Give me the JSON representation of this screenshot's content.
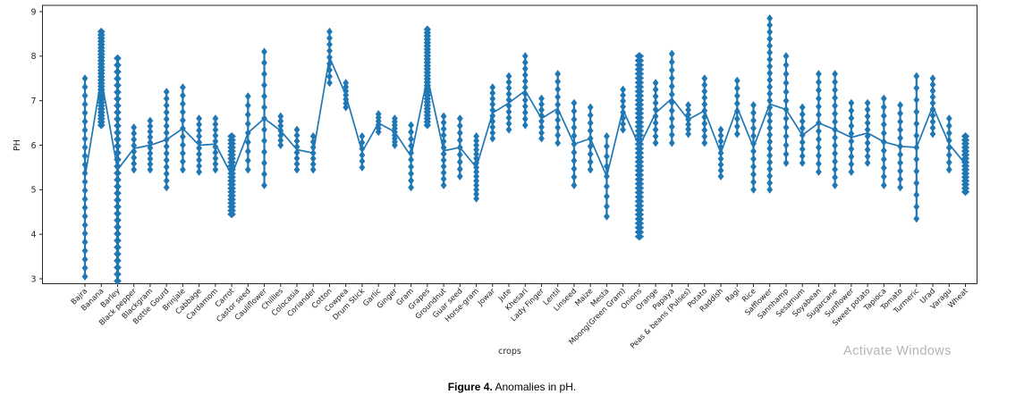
{
  "figure": {
    "caption_label": "Figure 4.",
    "caption_text": " Anomalies in pH."
  },
  "watermark": "Activate Windows",
  "chart_data": {
    "type": "scatter",
    "title": "",
    "xlabel": "crops",
    "ylabel": "PH",
    "ylim": [
      2.9,
      9.1
    ],
    "yticks": [
      3,
      4,
      5,
      6,
      7,
      8,
      9
    ],
    "grid": false,
    "legend": "none",
    "marker": "diamond",
    "color": "#1f77b4",
    "axis_color": "#262626",
    "note": "Each crop shows a dense vertical cluster of pH readings (anomaly scan); min/max give cluster extent, n = approx. point count, w = cluster thickness factor",
    "series": [
      {
        "label": "Bajra",
        "min": 3.05,
        "max": 7.5,
        "n": 24,
        "w": 1
      },
      {
        "label": "Banana",
        "min": 6.45,
        "max": 8.55,
        "n": 30,
        "w": 1.4
      },
      {
        "label": "Barley",
        "min": 2.95,
        "max": 7.95,
        "n": 34,
        "w": 1.4
      },
      {
        "label": "Black pepper",
        "min": 5.45,
        "max": 6.4,
        "n": 8,
        "w": 1
      },
      {
        "label": "Blackgram",
        "min": 5.45,
        "max": 6.55,
        "n": 10,
        "w": 1
      },
      {
        "label": "Bottle Gourd",
        "min": 5.05,
        "max": 7.2,
        "n": 15,
        "w": 1
      },
      {
        "label": "Brinjale",
        "min": 5.45,
        "max": 7.3,
        "n": 11,
        "w": 1
      },
      {
        "label": "Cabbage",
        "min": 5.4,
        "max": 6.6,
        "n": 10,
        "w": 1
      },
      {
        "label": "Cardamom",
        "min": 5.45,
        "max": 6.6,
        "n": 10,
        "w": 1
      },
      {
        "label": "Carrot",
        "min": 4.45,
        "max": 6.2,
        "n": 22,
        "w": 1.6
      },
      {
        "label": "Castor seed",
        "min": 5.45,
        "max": 7.1,
        "n": 9,
        "w": 1
      },
      {
        "label": "Cauliflower",
        "min": 5.1,
        "max": 8.1,
        "n": 13,
        "w": 1
      },
      {
        "label": "Chillies",
        "min": 6.0,
        "max": 6.65,
        "n": 7,
        "w": 1
      },
      {
        "label": "Colocasia",
        "min": 5.45,
        "max": 6.35,
        "n": 8,
        "w": 1
      },
      {
        "label": "Coriander",
        "min": 5.45,
        "max": 6.2,
        "n": 7,
        "w": 1
      },
      {
        "label": "Cotton",
        "min": 7.4,
        "max": 8.55,
        "n": 9,
        "w": 1
      },
      {
        "label": "Cowpea",
        "min": 6.85,
        "max": 7.4,
        "n": 7,
        "w": 1
      },
      {
        "label": "Drum Stick",
        "min": 5.5,
        "max": 6.2,
        "n": 6,
        "w": 1
      },
      {
        "label": "Garlic",
        "min": 6.3,
        "max": 6.7,
        "n": 6,
        "w": 1
      },
      {
        "label": "Ginger",
        "min": 6.0,
        "max": 6.6,
        "n": 9,
        "w": 1
      },
      {
        "label": "Gram",
        "min": 5.05,
        "max": 6.45,
        "n": 10,
        "w": 1
      },
      {
        "label": "Grapes",
        "min": 6.45,
        "max": 8.6,
        "n": 30,
        "w": 1.3
      },
      {
        "label": "Groundnut",
        "min": 5.1,
        "max": 6.65,
        "n": 12,
        "w": 1
      },
      {
        "label": "Guar seed",
        "min": 5.3,
        "max": 6.6,
        "n": 9,
        "w": 1
      },
      {
        "label": "Horse-gram",
        "min": 4.8,
        "max": 6.2,
        "n": 15,
        "w": 1
      },
      {
        "label": "Jowar",
        "min": 6.15,
        "max": 7.3,
        "n": 10,
        "w": 1
      },
      {
        "label": "Jute",
        "min": 6.35,
        "max": 7.55,
        "n": 10,
        "w": 1
      },
      {
        "label": "Khesari",
        "min": 6.45,
        "max": 8.0,
        "n": 12,
        "w": 1
      },
      {
        "label": "Lady Finger",
        "min": 6.15,
        "max": 7.05,
        "n": 8,
        "w": 1
      },
      {
        "label": "Lentil",
        "min": 6.05,
        "max": 7.6,
        "n": 10,
        "w": 1
      },
      {
        "label": "Linseed",
        "min": 5.1,
        "max": 6.95,
        "n": 11,
        "w": 1
      },
      {
        "label": "Maize",
        "min": 5.45,
        "max": 6.85,
        "n": 9,
        "w": 1
      },
      {
        "label": "Mesta",
        "min": 4.4,
        "max": 6.2,
        "n": 9,
        "w": 1
      },
      {
        "label": "Moong(Green Gram)",
        "min": 6.35,
        "max": 7.25,
        "n": 8,
        "w": 1
      },
      {
        "label": "Onions",
        "min": 3.95,
        "max": 8.0,
        "n": 42,
        "w": 1.8
      },
      {
        "label": "Orange",
        "min": 6.05,
        "max": 7.4,
        "n": 10,
        "w": 1
      },
      {
        "label": "Papaya",
        "min": 6.05,
        "max": 8.05,
        "n": 12,
        "w": 1
      },
      {
        "label": "Peas & beans (Pulses)",
        "min": 6.25,
        "max": 6.9,
        "n": 7,
        "w": 1
      },
      {
        "label": "Potato",
        "min": 6.05,
        "max": 7.5,
        "n": 11,
        "w": 1
      },
      {
        "label": "Raddish",
        "min": 5.3,
        "max": 6.35,
        "n": 9,
        "w": 1
      },
      {
        "label": "Ragi",
        "min": 6.25,
        "max": 7.45,
        "n": 8,
        "w": 1
      },
      {
        "label": "Rice",
        "min": 5.0,
        "max": 6.9,
        "n": 12,
        "w": 1
      },
      {
        "label": "Safflower",
        "min": 5.0,
        "max": 8.85,
        "n": 26,
        "w": 1
      },
      {
        "label": "Sannhamp",
        "min": 5.6,
        "max": 8.0,
        "n": 13,
        "w": 1
      },
      {
        "label": "Sesamum",
        "min": 5.6,
        "max": 6.85,
        "n": 9,
        "w": 1
      },
      {
        "label": "Soyabean",
        "min": 5.4,
        "max": 7.6,
        "n": 13,
        "w": 1
      },
      {
        "label": "Sugarcane",
        "min": 5.1,
        "max": 7.6,
        "n": 15,
        "w": 1
      },
      {
        "label": "Sunflower",
        "min": 5.4,
        "max": 6.95,
        "n": 10,
        "w": 1
      },
      {
        "label": "Sweet potato",
        "min": 5.6,
        "max": 6.95,
        "n": 10,
        "w": 1
      },
      {
        "label": "Tapioca",
        "min": 5.1,
        "max": 7.05,
        "n": 11,
        "w": 1
      },
      {
        "label": "Tomato",
        "min": 5.05,
        "max": 6.9,
        "n": 11,
        "w": 1
      },
      {
        "label": "Turmeric",
        "min": 4.35,
        "max": 7.55,
        "n": 13,
        "w": 1
      },
      {
        "label": "Urad",
        "min": 6.25,
        "max": 7.5,
        "n": 10,
        "w": 1
      },
      {
        "label": "Varagu",
        "min": 5.45,
        "max": 6.6,
        "n": 8,
        "w": 1
      },
      {
        "label": "Wheat",
        "min": 4.95,
        "max": 6.2,
        "n": 16,
        "w": 1.5
      }
    ]
  }
}
